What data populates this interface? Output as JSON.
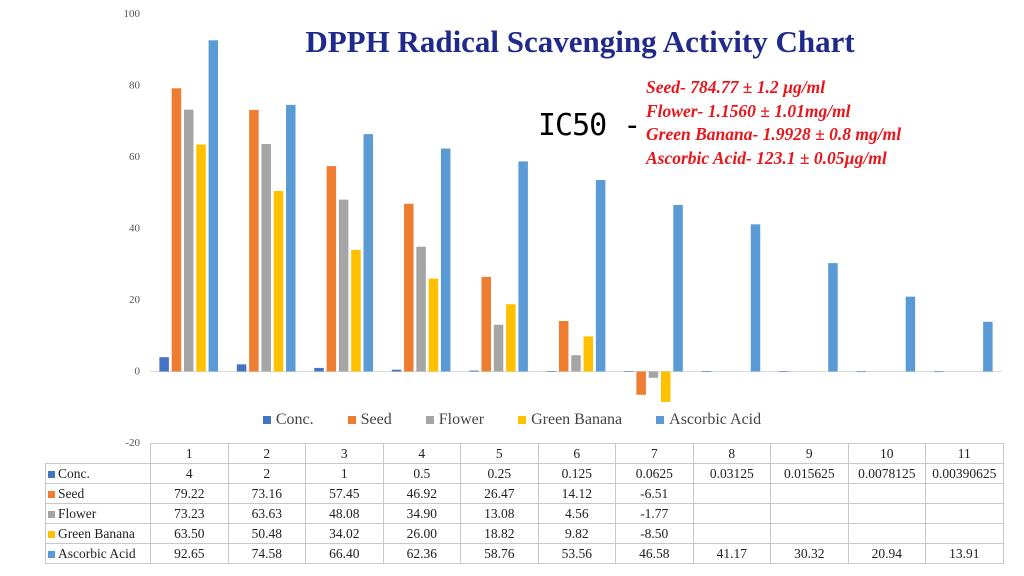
{
  "title": "DPPH Radical Scavenging Activity Chart",
  "ic50": {
    "label": "IC50 -",
    "lines": [
      "Seed- 784.77 ± 1.2 µg/ml",
      "Flower- 1.1560 ± 1.01mg/ml",
      "Green Banana- 1.9928 ± 0.8 mg/ml",
      "Ascorbic Acid- 123.1 ±  0.05µg/ml"
    ]
  },
  "chart_data": {
    "type": "bar",
    "categories": [
      "1",
      "2",
      "3",
      "4",
      "5",
      "6",
      "7",
      "8",
      "9",
      "10",
      "11"
    ],
    "ylim": [
      -20,
      100
    ],
    "yticks": [
      "-20",
      "0",
      "20",
      "40",
      "60",
      "80",
      "100"
    ],
    "grid": false,
    "legend_position": "bottom",
    "series": [
      {
        "name": "Conc.",
        "color": "#4472c4",
        "values": [
          4,
          2,
          1,
          0.5,
          0.25,
          0.125,
          0.0625,
          0.03125,
          0.015625,
          0.0078125,
          0.00390625
        ],
        "labels": [
          "4",
          "2",
          "1",
          "0.5",
          "0.25",
          "0.125",
          "0.0625",
          "0.03125",
          "0.015625",
          "0.0078125",
          "0.00390625"
        ]
      },
      {
        "name": "Seed",
        "color": "#ed7d31",
        "values": [
          79.22,
          73.16,
          57.45,
          46.92,
          26.47,
          14.12,
          -6.51,
          null,
          null,
          null,
          null
        ],
        "labels": [
          "79.22",
          "73.16",
          "57.45",
          "46.92",
          "26.47",
          "14.12",
          "-6.51",
          "",
          "",
          "",
          ""
        ]
      },
      {
        "name": "Flower",
        "color": "#a5a5a5",
        "values": [
          73.23,
          63.63,
          48.08,
          34.9,
          13.08,
          4.56,
          -1.77,
          null,
          null,
          null,
          null
        ],
        "labels": [
          "73.23",
          "63.63",
          "48.08",
          "34.90",
          "13.08",
          "4.56",
          "-1.77",
          "",
          "",
          "",
          ""
        ]
      },
      {
        "name": "Green Banana",
        "color": "#ffc000",
        "values": [
          63.5,
          50.48,
          34.02,
          26.0,
          18.82,
          9.82,
          -8.5,
          null,
          null,
          null,
          null
        ],
        "labels": [
          "63.50",
          "50.48",
          "34.02",
          "26.00",
          "18.82",
          "9.82",
          "-8.50",
          "",
          "",
          "",
          ""
        ]
      },
      {
        "name": "Ascorbic Acid",
        "color": "#5b9bd5",
        "values": [
          92.65,
          74.58,
          66.4,
          62.36,
          58.76,
          53.56,
          46.58,
          41.17,
          30.32,
          20.94,
          13.91
        ],
        "labels": [
          "92.65",
          "74.58",
          "66.40",
          "62.36",
          "58.76",
          "53.56",
          "46.58",
          "41.17",
          "30.32",
          "20.94",
          "13.91"
        ]
      }
    ]
  }
}
